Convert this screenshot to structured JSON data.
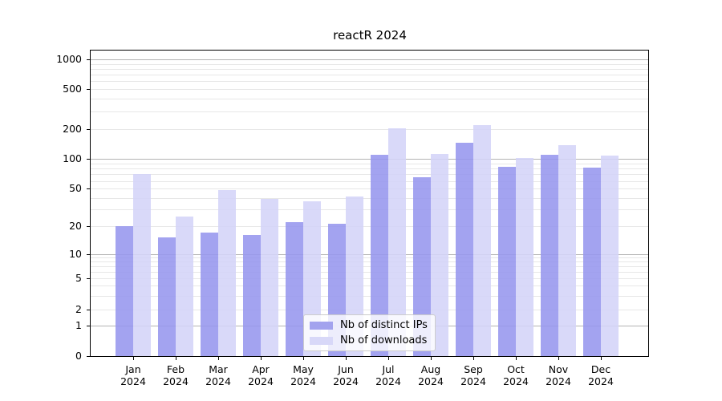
{
  "title": "reactR 2024",
  "colors": {
    "ips_bar": "rgba(150,150,238,0.88)",
    "downloads_bar": "rgba(212,212,248,0.88)",
    "ips_solid": "#a3a3ee",
    "downloads_solid": "#d8d8f8",
    "major_grid": "#b3b3b3",
    "minor_grid": "#e7e7e7",
    "axis": "#000000",
    "legend_border": "#cccccc",
    "background": "#ffffff"
  },
  "legend": {
    "position": "lower center",
    "items": [
      "Nb of distinct IPs",
      "Nb of downloads"
    ]
  },
  "chart_data": {
    "type": "bar",
    "title": "reactR 2024",
    "categories": [
      "Jan 2024",
      "Feb 2024",
      "Mar 2024",
      "Apr 2024",
      "May 2024",
      "Jun 2024",
      "Jul 2024",
      "Aug 2024",
      "Sep 2024",
      "Oct 2024",
      "Nov 2024",
      "Dec 2024"
    ],
    "month_labels": [
      "Jan",
      "Feb",
      "Mar",
      "Apr",
      "May",
      "Jun",
      "Jul",
      "Aug",
      "Sep",
      "Oct",
      "Nov",
      "Dec"
    ],
    "year_label": "2024",
    "series": [
      {
        "name": "Nb of distinct IPs",
        "values": [
          20,
          15,
          17,
          16,
          22,
          21,
          110,
          65,
          145,
          84,
          110,
          82
        ]
      },
      {
        "name": "Nb of downloads",
        "values": [
          70,
          25,
          48,
          39,
          37,
          41,
          205,
          113,
          220,
          102,
          137,
          109
        ]
      }
    ],
    "xlabel": "",
    "ylabel": "",
    "yscale": "symlog",
    "yticks": [
      0,
      1,
      2,
      5,
      10,
      20,
      50,
      100,
      200,
      500,
      1000
    ],
    "ylim": [
      0,
      1400
    ],
    "grid": "horizontal major and log-minor gridlines",
    "legend_position": "lower center"
  }
}
